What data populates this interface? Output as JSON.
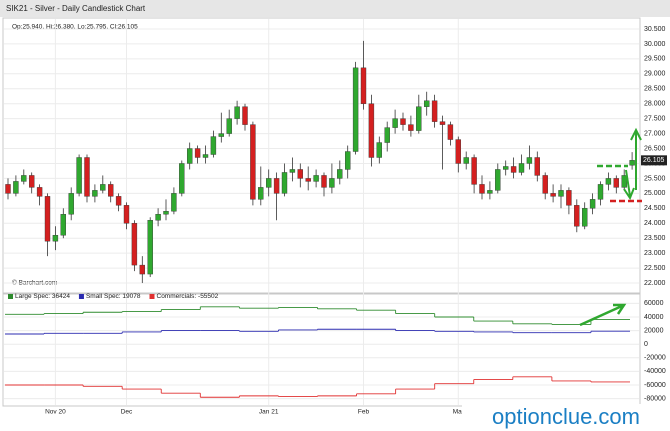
{
  "chart_data": [
    {
      "type": "candlestick",
      "title": "SIK21 - Silver - Daily Candlestick Chart",
      "ohlc_label": "Op:25.940, Hi:26.380, Lo:25.795, Cl:26.105",
      "source": "© Barchart.com",
      "watermark": "optionclue.com",
      "up_color": "#2fa82f",
      "down_color": "#d42020",
      "categories": [
        null,
        null,
        null,
        null,
        null,
        null,
        "Nov 20",
        null,
        null,
        null,
        null,
        null,
        null,
        null,
        null,
        "Dec",
        null,
        null,
        null,
        null,
        null,
        null,
        null,
        null,
        null,
        null,
        null,
        null,
        null,
        null,
        null,
        null,
        null,
        "Jan 21",
        null,
        null,
        null,
        null,
        null,
        null,
        null,
        null,
        null,
        null,
        null,
        "Feb",
        null,
        null,
        null,
        null,
        null,
        null,
        null,
        null,
        null,
        null,
        null,
        "Mar",
        null,
        null,
        null,
        null,
        null,
        null,
        null,
        null,
        null,
        null,
        null,
        null,
        null,
        null,
        null,
        null,
        null,
        null,
        null,
        null,
        null,
        null
      ],
      "open": [
        25.3,
        25.0,
        25.4,
        25.6,
        25.2,
        24.9,
        23.4,
        23.6,
        24.3,
        25.0,
        26.2,
        24.9,
        25.1,
        25.3,
        24.9,
        24.6,
        24.0,
        22.6,
        22.3,
        24.1,
        24.3,
        24.4,
        25.0,
        26.0,
        26.5,
        26.2,
        26.3,
        26.9,
        27.0,
        27.5,
        27.9,
        27.3,
        24.8,
        25.2,
        25.5,
        25.0,
        25.7,
        25.8,
        25.5,
        25.4,
        25.6,
        25.2,
        25.5,
        25.8,
        26.4,
        29.2,
        28.0,
        26.2,
        26.7,
        27.2,
        27.5,
        27.3,
        27.1,
        27.9,
        28.1,
        27.4,
        27.3,
        26.8,
        26.0,
        26.2,
        25.3,
        25.0,
        25.1,
        25.8,
        25.9,
        25.7,
        26.0,
        26.2,
        25.6,
        25.0,
        24.9,
        25.1,
        24.6,
        23.9,
        24.5,
        24.8,
        25.3,
        25.5,
        25.2,
        25.94
      ],
      "high": [
        25.5,
        25.6,
        25.8,
        25.7,
        25.3,
        25.0,
        23.9,
        24.5,
        25.2,
        26.3,
        26.3,
        25.3,
        25.6,
        25.4,
        25.0,
        24.7,
        24.1,
        22.9,
        24.2,
        24.5,
        24.8,
        25.2,
        26.1,
        26.7,
        26.6,
        26.6,
        27.1,
        27.7,
        27.8,
        28.1,
        28.0,
        27.4,
        25.9,
        25.8,
        25.7,
        26.0,
        26.2,
        26.0,
        25.9,
        25.8,
        25.7,
        26.0,
        26.1,
        26.6,
        29.4,
        30.1,
        28.3,
        26.9,
        27.4,
        27.8,
        27.7,
        27.6,
        28.3,
        28.4,
        28.3,
        27.6,
        27.4,
        26.9,
        26.4,
        26.3,
        25.6,
        25.4,
        26.0,
        26.1,
        26.2,
        26.3,
        26.6,
        26.4,
        25.7,
        25.3,
        25.3,
        25.2,
        24.8,
        24.7,
        25.0,
        25.4,
        25.7,
        25.6,
        25.8,
        26.38
      ],
      "low": [
        24.8,
        24.9,
        25.3,
        25.0,
        24.6,
        22.9,
        23.1,
        23.5,
        24.1,
        24.9,
        24.7,
        24.7,
        25.0,
        24.7,
        24.4,
        23.8,
        22.4,
        22.0,
        22.2,
        23.9,
        24.1,
        24.3,
        24.9,
        25.8,
        26.0,
        26.0,
        26.2,
        26.7,
        26.9,
        27.3,
        27.1,
        24.6,
        24.6,
        24.9,
        24.1,
        24.9,
        25.4,
        25.2,
        25.1,
        25.2,
        24.9,
        25.0,
        25.3,
        25.5,
        26.3,
        27.8,
        25.9,
        26.0,
        26.4,
        27.0,
        27.1,
        26.9,
        27.0,
        27.6,
        27.2,
        25.8,
        26.6,
        25.7,
        25.8,
        25.0,
        24.8,
        24.8,
        25.0,
        25.6,
        25.5,
        25.6,
        25.8,
        25.4,
        24.8,
        24.7,
        24.5,
        24.3,
        23.7,
        23.8,
        24.3,
        24.6,
        25.1,
        25.0,
        25.1,
        25.795
      ],
      "close": [
        25.0,
        25.4,
        25.6,
        25.2,
        24.9,
        23.4,
        23.6,
        24.3,
        25.0,
        26.2,
        24.9,
        25.1,
        25.3,
        24.9,
        24.6,
        24.0,
        22.6,
        22.3,
        24.1,
        24.3,
        24.4,
        25.0,
        26.0,
        26.5,
        26.2,
        26.3,
        26.9,
        27.0,
        27.5,
        27.9,
        27.3,
        24.8,
        25.2,
        25.5,
        25.0,
        25.7,
        25.8,
        25.5,
        25.4,
        25.6,
        25.2,
        25.5,
        25.8,
        26.4,
        29.2,
        28.0,
        26.2,
        26.7,
        27.2,
        27.5,
        27.3,
        27.1,
        27.9,
        28.1,
        27.4,
        27.3,
        26.8,
        26.0,
        26.2,
        25.3,
        25.0,
        25.1,
        25.8,
        25.9,
        25.7,
        26.0,
        26.2,
        25.6,
        25.0,
        24.9,
        25.1,
        24.6,
        23.9,
        24.5,
        24.8,
        25.3,
        25.5,
        25.2,
        25.6,
        26.105
      ],
      "ylim": [
        21.7,
        30.8
      ],
      "yticks": [
        {
          "value": 22,
          "label": "22.000"
        },
        {
          "value": 22.5,
          "label": "22.500"
        },
        {
          "value": 23,
          "label": "23.000"
        },
        {
          "value": 23.5,
          "label": "23.500"
        },
        {
          "value": 24,
          "label": "24.000"
        },
        {
          "value": 24.5,
          "label": "24.500"
        },
        {
          "value": 25,
          "label": "25.000"
        },
        {
          "value": 25.5,
          "label": "25.500"
        },
        {
          "value": 26,
          "label": "26.000"
        },
        {
          "value": 26.5,
          "label": "26.500"
        },
        {
          "value": 27,
          "label": "27.000"
        },
        {
          "value": 27.5,
          "label": "27.500"
        },
        {
          "value": 28,
          "label": "28.000"
        },
        {
          "value": 28.5,
          "label": "28.500"
        },
        {
          "value": 29,
          "label": "29.000"
        },
        {
          "value": 29.5,
          "label": "29.500"
        },
        {
          "value": 30,
          "label": "30.000"
        },
        {
          "value": 30.5,
          "label": "30.500"
        }
      ],
      "grid": true
    },
    {
      "type": "step",
      "series": [
        {
          "name": "Large Spec: 36424",
          "color": "#2e8b2e",
          "values": [
            44000,
            45000,
            47000,
            48000,
            51000,
            55000,
            53000,
            54000,
            52000,
            50000,
            45000,
            40000,
            34000,
            30000,
            29000,
            36424
          ]
        },
        {
          "name": "Small Spec: 19078",
          "color": "#2b2bb0",
          "values": [
            15000,
            16000,
            16000,
            18000,
            20000,
            20000,
            19000,
            21000,
            22000,
            22000,
            20000,
            19000,
            18000,
            17000,
            17000,
            19078
          ]
        },
        {
          "name": "Commercials: -55502",
          "color": "#e03030",
          "values": [
            -60000,
            -60000,
            -62000,
            -66000,
            -72000,
            -78000,
            -76000,
            -77000,
            -76000,
            -73000,
            -66000,
            -58000,
            -52000,
            -48000,
            -54000,
            -55502
          ]
        }
      ],
      "ylim": [
        -85000,
        65000
      ],
      "yticks": [
        60000,
        40000,
        20000,
        0,
        -20000,
        -40000,
        -60000,
        -80000
      ],
      "grid": true
    }
  ]
}
